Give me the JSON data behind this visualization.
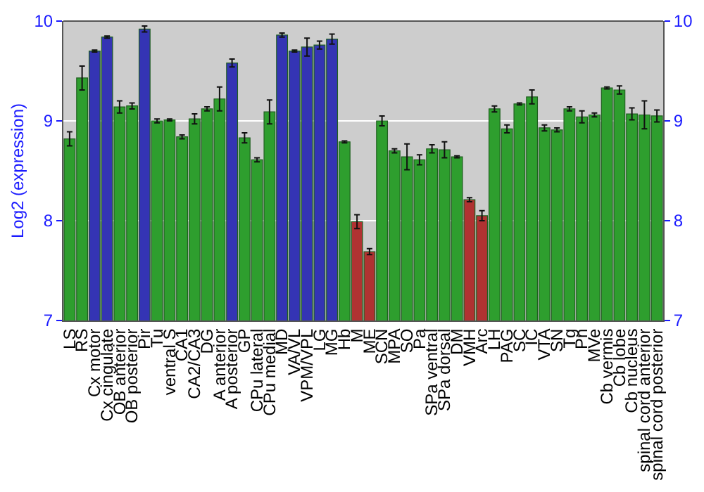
{
  "chart_data": {
    "type": "bar",
    "ylabel": "Log2 (expression)",
    "categories": [
      "LS",
      "RS",
      "Cx motor",
      "Cx cingulate",
      "OB anterior",
      "OB posterior",
      "Pir",
      "Tu",
      "ventral S",
      "CA1",
      "CA2/CA3",
      "DG",
      "A anterior",
      "A posterior",
      "GP",
      "CPu lateral",
      "CPu medial",
      "MD",
      "VA/VL",
      "VPM/VPL",
      "LG",
      "MG",
      "Hb",
      "M",
      "ME",
      "SCN",
      "MPA",
      "SO",
      "Pa",
      "SPa ventral",
      "SPa dorsal",
      "DM",
      "VMH",
      "Arc",
      "LH",
      "PAG",
      "SC",
      "IC",
      "VTA",
      "SN",
      "Tg",
      "Pn",
      "MVe",
      "Cb vermis",
      "Cb lobe",
      "Cb nucleus",
      "spinal cord anterior",
      "spinal cord posterior"
    ],
    "values": [
      8.82,
      9.43,
      9.7,
      9.84,
      9.14,
      9.15,
      9.92,
      9.0,
      9.01,
      8.84,
      9.02,
      9.12,
      9.22,
      9.58,
      8.83,
      8.61,
      9.09,
      9.86,
      9.7,
      9.74,
      9.76,
      9.82,
      8.79,
      7.99,
      7.69,
      9.0,
      8.7,
      8.64,
      8.61,
      8.72,
      8.71,
      8.64,
      8.21,
      8.05,
      9.12,
      8.92,
      9.17,
      9.24,
      8.93,
      8.91,
      9.12,
      9.04,
      9.06,
      9.33,
      9.31,
      9.07,
      9.06,
      9.05
    ],
    "errors": [
      0.07,
      0.12,
      0.01,
      0.01,
      0.06,
      0.03,
      0.03,
      0.02,
      0.01,
      0.02,
      0.05,
      0.02,
      0.12,
      0.04,
      0.05,
      0.02,
      0.12,
      0.02,
      0.01,
      0.09,
      0.04,
      0.05,
      0.01,
      0.07,
      0.03,
      0.05,
      0.02,
      0.13,
      0.05,
      0.04,
      0.08,
      0.01,
      0.02,
      0.05,
      0.03,
      0.04,
      0.01,
      0.07,
      0.03,
      0.02,
      0.02,
      0.06,
      0.02,
      0.01,
      0.04,
      0.06,
      0.14,
      0.06
    ],
    "colors": [
      "#2e9e2e",
      "#2e9e2e",
      "#3434b4",
      "#3434b4",
      "#2e9e2e",
      "#2e9e2e",
      "#3434b4",
      "#2e9e2e",
      "#2e9e2e",
      "#2e9e2e",
      "#2e9e2e",
      "#2e9e2e",
      "#2e9e2e",
      "#3434b4",
      "#2e9e2e",
      "#2e9e2e",
      "#2e9e2e",
      "#3434b4",
      "#3434b4",
      "#3434b4",
      "#3434b4",
      "#3434b4",
      "#2e9e2e",
      "#b03232",
      "#b03232",
      "#2e9e2e",
      "#2e9e2e",
      "#2e9e2e",
      "#2e9e2e",
      "#2e9e2e",
      "#2e9e2e",
      "#2e9e2e",
      "#b03232",
      "#b03232",
      "#2e9e2e",
      "#2e9e2e",
      "#2e9e2e",
      "#2e9e2e",
      "#2e9e2e",
      "#2e9e2e",
      "#2e9e2e",
      "#2e9e2e",
      "#2e9e2e",
      "#2e9e2e",
      "#2e9e2e",
      "#2e9e2e",
      "#2e9e2e",
      "#2e9e2e"
    ],
    "ylim": [
      7,
      10
    ],
    "yticks": [
      7,
      8,
      9,
      10
    ],
    "y2lim": [
      7,
      10
    ],
    "y2ticks": [
      7,
      8,
      9,
      10
    ],
    "grid": "y"
  }
}
